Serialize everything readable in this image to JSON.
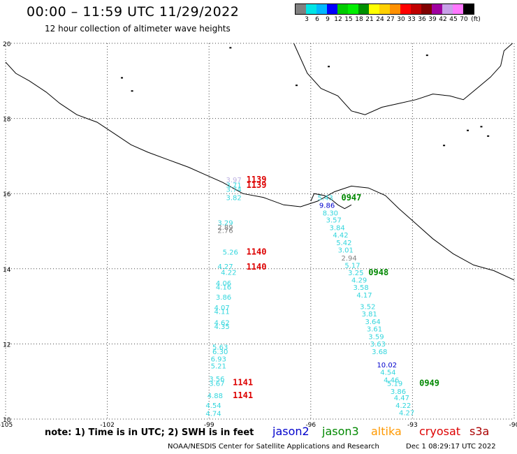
{
  "header": {
    "title": "00:00 – 11:59 UTC 11/29/2022",
    "subtitle": "12 hour collection of altimeter wave heights"
  },
  "legend": {
    "colors": [
      "#808080",
      "#00e5e5",
      "#00b8ff",
      "#0000ff",
      "#00cc00",
      "#00ee00",
      "#009000",
      "#ffff00",
      "#ffd000",
      "#ff9000",
      "#ff0000",
      "#c00000",
      "#800000",
      "#a000a0",
      "#c8a0e8",
      "#ff78ff",
      "#000000"
    ],
    "labels": [
      "3",
      "6",
      "9",
      "12",
      "15",
      "18",
      "21",
      "24",
      "27",
      "30",
      "33",
      "36",
      "39",
      "42",
      "45",
      "70"
    ],
    "unit": "(ft)"
  },
  "axes": {
    "x_ticks": [
      "-105",
      "-102",
      "-99",
      "-96",
      "-93",
      "-90"
    ],
    "y_ticks": [
      "10",
      "12",
      "14",
      "16",
      "18",
      "20"
    ]
  },
  "colors": {
    "wave": "#33d6dd",
    "jason2": "#0000cc",
    "jason3": "#008800",
    "altika": "#ff9900",
    "cryosat": "#dd0000",
    "s3a": "#aa0000",
    "gray": "#808080",
    "lavender": "#bbb0e0"
  },
  "passes": [
    {
      "label": "1139",
      "lon": -97.9,
      "lat": 16.3,
      "color": "cryosat"
    },
    {
      "label": "1139",
      "lon": -97.9,
      "lat": 16.15,
      "color": "cryosat"
    },
    {
      "label": "1140",
      "lon": -97.9,
      "lat": 14.38,
      "color": "cryosat"
    },
    {
      "label": "1140",
      "lon": -97.9,
      "lat": 13.98,
      "color": "cryosat"
    },
    {
      "label": "1141",
      "lon": -98.3,
      "lat": 10.9,
      "color": "cryosat"
    },
    {
      "label": "1141",
      "lon": -98.3,
      "lat": 10.56,
      "color": "cryosat"
    },
    {
      "label": "0947",
      "lon": -95.1,
      "lat": 15.82,
      "color": "jason3"
    },
    {
      "label": "0948",
      "lon": -94.3,
      "lat": 13.83,
      "color": "jason3"
    },
    {
      "label": "0949",
      "lon": -92.8,
      "lat": 10.88,
      "color": "jason3"
    }
  ],
  "waves": [
    {
      "v": "3.97",
      "lon": -98.5,
      "lat": 16.3,
      "c": "lavender"
    },
    {
      "v": "3.71",
      "lon": -98.5,
      "lat": 16.16,
      "c": "wave"
    },
    {
      "v": "3.74",
      "lon": -98.5,
      "lat": 16.05,
      "c": "wave"
    },
    {
      "v": "3.82",
      "lon": -98.5,
      "lat": 15.83,
      "c": "wave"
    },
    {
      "v": "3.29",
      "lon": -98.75,
      "lat": 15.16,
      "c": "wave"
    },
    {
      "v": "2.89",
      "lon": -98.75,
      "lat": 15.04,
      "c": "gray"
    },
    {
      "v": "2.76",
      "lon": -98.75,
      "lat": 14.95,
      "c": "gray"
    },
    {
      "v": "5.26",
      "lon": -98.6,
      "lat": 14.38,
      "c": "wave"
    },
    {
      "v": "4.27",
      "lon": -98.75,
      "lat": 14.0,
      "c": "wave"
    },
    {
      "v": "4.22",
      "lon": -98.65,
      "lat": 13.84,
      "c": "wave"
    },
    {
      "v": "4.06",
      "lon": -98.8,
      "lat": 13.55,
      "c": "wave"
    },
    {
      "v": "4.16",
      "lon": -98.8,
      "lat": 13.45,
      "c": "wave"
    },
    {
      "v": "3.86",
      "lon": -98.8,
      "lat": 13.18,
      "c": "wave"
    },
    {
      "v": "4.07",
      "lon": -98.85,
      "lat": 12.9,
      "c": "wave"
    },
    {
      "v": "4.11",
      "lon": -98.85,
      "lat": 12.8,
      "c": "wave"
    },
    {
      "v": "4.62",
      "lon": -98.85,
      "lat": 12.5,
      "c": "wave"
    },
    {
      "v": "4.35",
      "lon": -98.85,
      "lat": 12.4,
      "c": "wave"
    },
    {
      "v": "5.63",
      "lon": -98.9,
      "lat": 11.85,
      "c": "wave"
    },
    {
      "v": "6.30",
      "lon": -98.9,
      "lat": 11.73,
      "c": "wave"
    },
    {
      "v": "6.93",
      "lon": -98.95,
      "lat": 11.53,
      "c": "wave"
    },
    {
      "v": "5.21",
      "lon": -98.95,
      "lat": 11.35,
      "c": "wave"
    },
    {
      "v": "3.56",
      "lon": -99.0,
      "lat": 11.0,
      "c": "wave"
    },
    {
      "v": "3.67",
      "lon": -99.0,
      "lat": 10.88,
      "c": "wave"
    },
    {
      "v": "4.88",
      "lon": -99.05,
      "lat": 10.56,
      "c": "wave"
    },
    {
      "v": "4.54",
      "lon": -99.1,
      "lat": 10.3,
      "c": "wave"
    },
    {
      "v": "4.74",
      "lon": -99.1,
      "lat": 10.08,
      "c": "wave"
    },
    {
      "v": "5.43",
      "lon": -95.8,
      "lat": 15.83,
      "c": "wave"
    },
    {
      "v": "9.86",
      "lon": -95.75,
      "lat": 15.62,
      "c": "jason2"
    },
    {
      "v": "8.30",
      "lon": -95.65,
      "lat": 15.42,
      "c": "wave"
    },
    {
      "v": "3.57",
      "lon": -95.55,
      "lat": 15.23,
      "c": "wave"
    },
    {
      "v": "3.84",
      "lon": -95.45,
      "lat": 15.03,
      "c": "wave"
    },
    {
      "v": "4.42",
      "lon": -95.35,
      "lat": 14.83,
      "c": "wave"
    },
    {
      "v": "5.42",
      "lon": -95.25,
      "lat": 14.63,
      "c": "wave"
    },
    {
      "v": "3.01",
      "lon": -95.2,
      "lat": 14.43,
      "c": "wave"
    },
    {
      "v": "2.94",
      "lon": -95.1,
      "lat": 14.22,
      "c": "gray"
    },
    {
      "v": "5.17",
      "lon": -95.0,
      "lat": 14.02,
      "c": "wave"
    },
    {
      "v": "3.25",
      "lon": -94.9,
      "lat": 13.83,
      "c": "wave"
    },
    {
      "v": "4.29",
      "lon": -94.8,
      "lat": 13.63,
      "c": "wave"
    },
    {
      "v": "3.58",
      "lon": -94.75,
      "lat": 13.44,
      "c": "wave"
    },
    {
      "v": "4.17",
      "lon": -94.65,
      "lat": 13.23,
      "c": "wave"
    },
    {
      "v": "3.52",
      "lon": -94.55,
      "lat": 12.93,
      "c": "wave"
    },
    {
      "v": "3.81",
      "lon": -94.5,
      "lat": 12.73,
      "c": "wave"
    },
    {
      "v": "3.64",
      "lon": -94.4,
      "lat": 12.53,
      "c": "wave"
    },
    {
      "v": "3.61",
      "lon": -94.35,
      "lat": 12.33,
      "c": "wave"
    },
    {
      "v": "3.59",
      "lon": -94.3,
      "lat": 12.13,
      "c": "wave"
    },
    {
      "v": "3.63",
      "lon": -94.25,
      "lat": 11.93,
      "c": "wave"
    },
    {
      "v": "3.68",
      "lon": -94.2,
      "lat": 11.73,
      "c": "wave"
    },
    {
      "v": "10.02",
      "lon": -94.05,
      "lat": 11.38,
      "c": "jason2"
    },
    {
      "v": "4.54",
      "lon": -93.95,
      "lat": 11.18,
      "c": "wave"
    },
    {
      "v": "4.46",
      "lon": -93.85,
      "lat": 10.98,
      "c": "wave"
    },
    {
      "v": "5.19",
      "lon": -93.75,
      "lat": 10.88,
      "c": "wave"
    },
    {
      "v": "3.86",
      "lon": -93.65,
      "lat": 10.67,
      "c": "wave"
    },
    {
      "v": "4.47",
      "lon": -93.55,
      "lat": 10.5,
      "c": "wave"
    },
    {
      "v": "4.22",
      "lon": -93.5,
      "lat": 10.3,
      "c": "wave"
    },
    {
      "v": "4.27",
      "lon": -93.4,
      "lat": 10.1,
      "c": "wave"
    }
  ],
  "coast": {
    "main": [
      [
        -105,
        19.5
      ],
      [
        -104.7,
        19.2
      ],
      [
        -104.3,
        19.0
      ],
      [
        -103.8,
        18.7
      ],
      [
        -103.4,
        18.4
      ],
      [
        -102.9,
        18.1
      ],
      [
        -102.3,
        17.9
      ],
      [
        -101.8,
        17.6
      ],
      [
        -101.3,
        17.3
      ],
      [
        -100.8,
        17.1
      ],
      [
        -100.2,
        16.9
      ],
      [
        -99.6,
        16.7
      ],
      [
        -99.1,
        16.5
      ],
      [
        -98.6,
        16.3
      ],
      [
        -98.0,
        16.0
      ],
      [
        -97.4,
        15.9
      ],
      [
        -96.8,
        15.7
      ],
      [
        -96.3,
        15.65
      ],
      [
        -95.8,
        15.8
      ],
      [
        -95.3,
        16.05
      ],
      [
        -94.8,
        16.2
      ],
      [
        -94.3,
        16.15
      ],
      [
        -93.8,
        15.95
      ],
      [
        -93.4,
        15.6
      ],
      [
        -92.9,
        15.2
      ],
      [
        -92.4,
        14.8
      ],
      [
        -91.8,
        14.4
      ],
      [
        -91.2,
        14.1
      ],
      [
        -90.6,
        13.95
      ],
      [
        -90.0,
        13.7
      ]
    ],
    "bay": [
      [
        -96.5,
        20.0
      ],
      [
        -96.3,
        19.6
      ],
      [
        -96.1,
        19.2
      ],
      [
        -95.7,
        18.8
      ],
      [
        -95.2,
        18.6
      ],
      [
        -94.8,
        18.2
      ],
      [
        -94.4,
        18.1
      ],
      [
        -93.9,
        18.3
      ],
      [
        -93.4,
        18.4
      ],
      [
        -92.9,
        18.5
      ],
      [
        -92.4,
        18.65
      ],
      [
        -91.9,
        18.6
      ],
      [
        -91.5,
        18.5
      ],
      [
        -91.1,
        18.8
      ],
      [
        -90.7,
        19.1
      ],
      [
        -90.4,
        19.4
      ],
      [
        -90.3,
        19.8
      ],
      [
        -90.05,
        20.0
      ]
    ],
    "islands": [
      [
        -96.0,
        15.8
      ],
      [
        -95.9,
        16.0
      ],
      [
        -95.6,
        15.95
      ],
      [
        -95.4,
        15.85
      ],
      [
        -95.2,
        15.7
      ],
      [
        -95.0,
        15.6
      ],
      [
        -94.8,
        15.7
      ]
    ]
  },
  "labels": {
    "note": "note: 1) Time is in UTC; 2) SWH is in feet",
    "jason2": "jason2",
    "jason3": "jason3",
    "altika": "altika",
    "cryosat": "cryosat",
    "s3a": "s3a",
    "footer_left": "NOAA/NESDIS Center for Satellite Applications and Research",
    "footer_right": "Dec  1 08:29:17 UTC 2022"
  }
}
